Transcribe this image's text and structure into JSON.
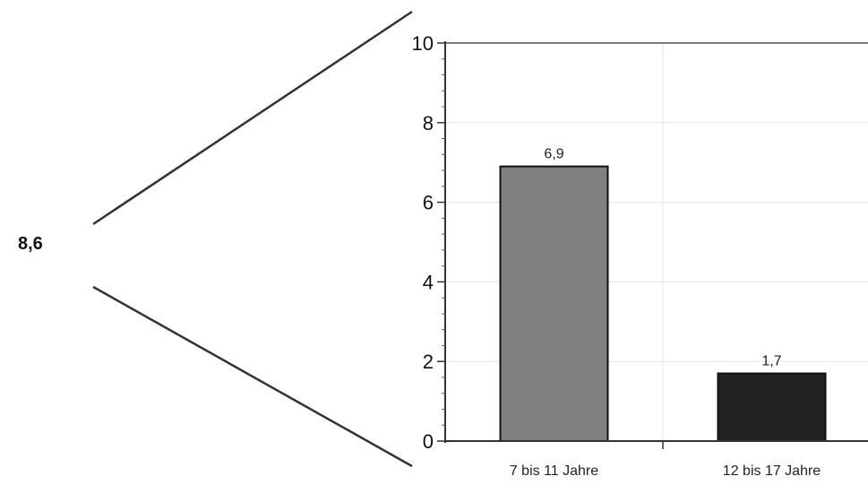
{
  "total_label": "8,6",
  "chart_data": {
    "type": "bar",
    "categories": [
      "7 bis 11 Jahre",
      "12 bis 17 Jahre"
    ],
    "values": [
      6.9,
      1.7
    ],
    "value_labels": [
      "6,9",
      "1,7"
    ],
    "bar_colors": [
      "#808080",
      "#222222"
    ],
    "ylim": [
      0,
      10
    ],
    "yticks": [
      0,
      2,
      4,
      6,
      8,
      10
    ],
    "ytick_labels": [
      "0",
      "2",
      "4",
      "6",
      "8",
      "10"
    ],
    "ytick_minor_step": 0.4,
    "grid": true,
    "title": "",
    "xlabel": "",
    "ylabel": ""
  }
}
